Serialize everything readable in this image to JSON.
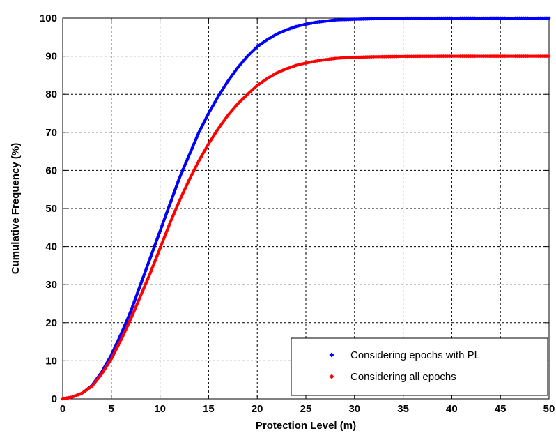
{
  "chart_data": {
    "type": "line",
    "title": "",
    "xlabel": "Protection Level (m)",
    "ylabel": "Cumulative Frequency (%)",
    "xlim": [
      0,
      50
    ],
    "ylim": [
      0,
      100
    ],
    "xticks": [
      0,
      5,
      10,
      15,
      20,
      25,
      30,
      35,
      40,
      45,
      50
    ],
    "yticks": [
      0,
      10,
      20,
      30,
      40,
      50,
      60,
      70,
      80,
      90,
      100
    ],
    "grid": true,
    "grid_style": "dashed",
    "legend_position": "bottom-right",
    "x": [
      0,
      1,
      2,
      3,
      4,
      5,
      6,
      7,
      8,
      9,
      10,
      11,
      12,
      13,
      14,
      15,
      16,
      17,
      18,
      19,
      20,
      21,
      22,
      23,
      24,
      25,
      26,
      27,
      28,
      29,
      30,
      32,
      35,
      40,
      45,
      50
    ],
    "series": [
      {
        "name": "Considering epochs with PL",
        "color": "#0000ff",
        "marker": "diamond",
        "values": [
          0,
          0.5,
          1.5,
          3.5,
          7,
          11.5,
          17,
          23,
          30,
          37,
          44,
          51,
          58,
          64,
          70,
          75,
          79.5,
          83.5,
          87,
          90,
          92.5,
          94.3,
          95.8,
          96.9,
          97.8,
          98.4,
          98.9,
          99.2,
          99.5,
          99.6,
          99.7,
          99.85,
          99.95,
          100,
          100,
          100
        ]
      },
      {
        "name": "Considering all epochs",
        "color": "#ff0000",
        "marker": "diamond",
        "values": [
          0,
          0.5,
          1.5,
          3.3,
          6.5,
          10.5,
          15.5,
          21,
          27,
          33,
          39.5,
          46,
          52,
          57.5,
          62.5,
          67,
          71,
          74.5,
          77.5,
          80,
          82.3,
          84.1,
          85.6,
          86.7,
          87.6,
          88.2,
          88.7,
          89.1,
          89.4,
          89.6,
          89.7,
          89.85,
          89.95,
          90,
          90,
          90
        ]
      }
    ]
  }
}
